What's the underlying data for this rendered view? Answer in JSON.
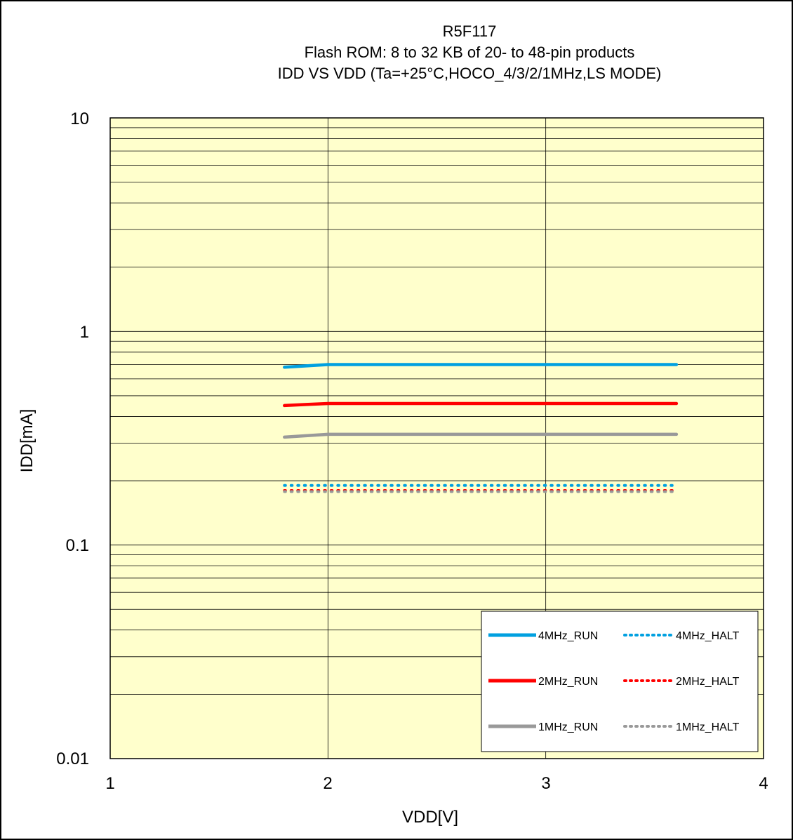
{
  "chart_data": {
    "type": "line",
    "title_lines": [
      "R5F117",
      "Flash ROM: 8 to 32 KB of 20- to 48-pin products",
      "IDD VS VDD (Ta=+25°C,HOCO_4/3/2/1MHz,LS MODE)"
    ],
    "xlabel": "VDD[V]",
    "ylabel": "IDD[mA]",
    "xlim": [
      1,
      4
    ],
    "ylim": [
      0.01,
      10
    ],
    "yscale": "log",
    "x_ticks": [
      "1",
      "2",
      "3",
      "4"
    ],
    "y_ticks": [
      "0.01",
      "0.1",
      "1",
      "10"
    ],
    "grid": true,
    "background": "#FFFFCC",
    "legend_position": "bottom-right",
    "x": [
      1.8,
      1.9,
      2.0,
      2.1,
      2.5,
      3.0,
      3.6
    ],
    "series": [
      {
        "name": "4MHz_RUN",
        "color": "#00A0E0",
        "style": "solid",
        "values": [
          0.68,
          0.69,
          0.7,
          0.7,
          0.7,
          0.7,
          0.7
        ]
      },
      {
        "name": "4MHz_HALT",
        "color": "#00A0E0",
        "style": "dotted",
        "values": [
          0.19,
          0.19,
          0.19,
          0.19,
          0.19,
          0.19,
          0.19
        ]
      },
      {
        "name": "2MHz_RUN",
        "color": "#FF0000",
        "style": "solid",
        "values": [
          0.45,
          0.455,
          0.46,
          0.46,
          0.46,
          0.46,
          0.46
        ]
      },
      {
        "name": "2MHz_HALT",
        "color": "#FF0000",
        "style": "dotted",
        "values": [
          0.18,
          0.18,
          0.18,
          0.18,
          0.18,
          0.18,
          0.18
        ]
      },
      {
        "name": "1MHz_RUN",
        "color": "#999999",
        "style": "solid",
        "values": [
          0.32,
          0.325,
          0.33,
          0.33,
          0.33,
          0.33,
          0.33
        ]
      },
      {
        "name": "1MHz_HALT",
        "color": "#999999",
        "style": "dotted",
        "values": [
          0.178,
          0.178,
          0.178,
          0.178,
          0.178,
          0.178,
          0.178
        ]
      }
    ]
  }
}
